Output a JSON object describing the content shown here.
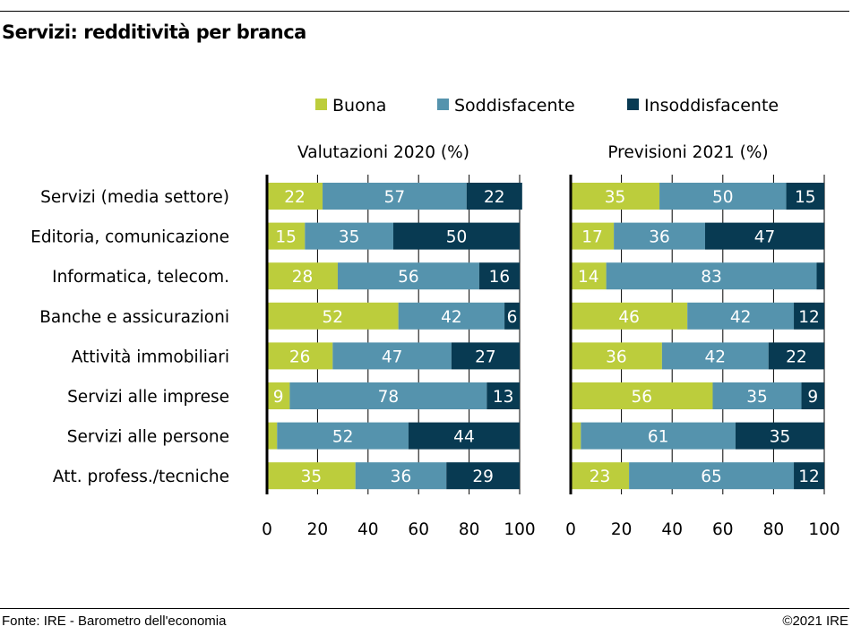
{
  "header": {
    "title": "Servizi: redditività per branca"
  },
  "footer": {
    "source": "Fonte: IRE - Barometro dell'economia",
    "copyright": "©2021 IRE"
  },
  "chart_data": {
    "type": "bar",
    "orientation": "horizontal",
    "stacked": true,
    "title": "Servizi: redditività per branca",
    "legend": {
      "placement": "top",
      "entries": [
        {
          "name": "Buona",
          "color": "#bccd3c"
        },
        {
          "name": "Soddisfacente",
          "color": "#5593ad"
        },
        {
          "name": "Insoddisfacente",
          "color": "#083a52"
        }
      ]
    },
    "categories": [
      "Servizi (media settore)",
      "Editoria, comunicazione",
      "Informatica, telecom.",
      "Banche e assicurazioni",
      "Attività immobiliari",
      "Servizi alle imprese",
      "Servizi alle persone",
      "Att. profess./tecniche"
    ],
    "panels": [
      {
        "title": "Valutazioni 2020 (%)",
        "xlim": [
          0,
          100
        ],
        "xticks": [
          "0",
          "20",
          "40",
          "60",
          "80",
          "100"
        ],
        "series": [
          {
            "name": "Buona",
            "values": [
              22,
              15,
              28,
              52,
              26,
              9,
              4,
              35
            ],
            "labels": [
              "22",
              "15",
              "28",
              "52",
              "26",
              "9",
              "",
              "35"
            ]
          },
          {
            "name": "Soddisfacente",
            "values": [
              57,
              35,
              56,
              42,
              47,
              78,
              52,
              36
            ],
            "labels": [
              "57",
              "35",
              "56",
              "42",
              "47",
              "78",
              "52",
              "36"
            ]
          },
          {
            "name": "Insoddisfacente",
            "values": [
              22,
              50,
              16,
              6,
              27,
              13,
              44,
              29
            ],
            "labels": [
              "22",
              "50",
              "16",
              "6",
              "27",
              "13",
              "44",
              "29"
            ]
          }
        ]
      },
      {
        "title": "Previsioni 2021 (%)",
        "xlim": [
          0,
          100
        ],
        "xticks": [
          "0",
          "20",
          "40",
          "60",
          "80",
          "100"
        ],
        "series": [
          {
            "name": "Buona",
            "values": [
              35,
              17,
              14,
              46,
              36,
              56,
              4,
              23
            ],
            "labels": [
              "35",
              "17",
              "14",
              "46",
              "36",
              "56",
              "",
              "23"
            ]
          },
          {
            "name": "Soddisfacente",
            "values": [
              50,
              36,
              83,
              42,
              42,
              35,
              61,
              65
            ],
            "labels": [
              "50",
              "36",
              "83",
              "42",
              "42",
              "35",
              "61",
              "65"
            ]
          },
          {
            "name": "Insoddisfacente",
            "values": [
              15,
              47,
              3,
              12,
              22,
              9,
              35,
              12
            ],
            "labels": [
              "15",
              "47",
              "",
              "12",
              "22",
              "9",
              "35",
              "12"
            ]
          }
        ]
      }
    ]
  }
}
